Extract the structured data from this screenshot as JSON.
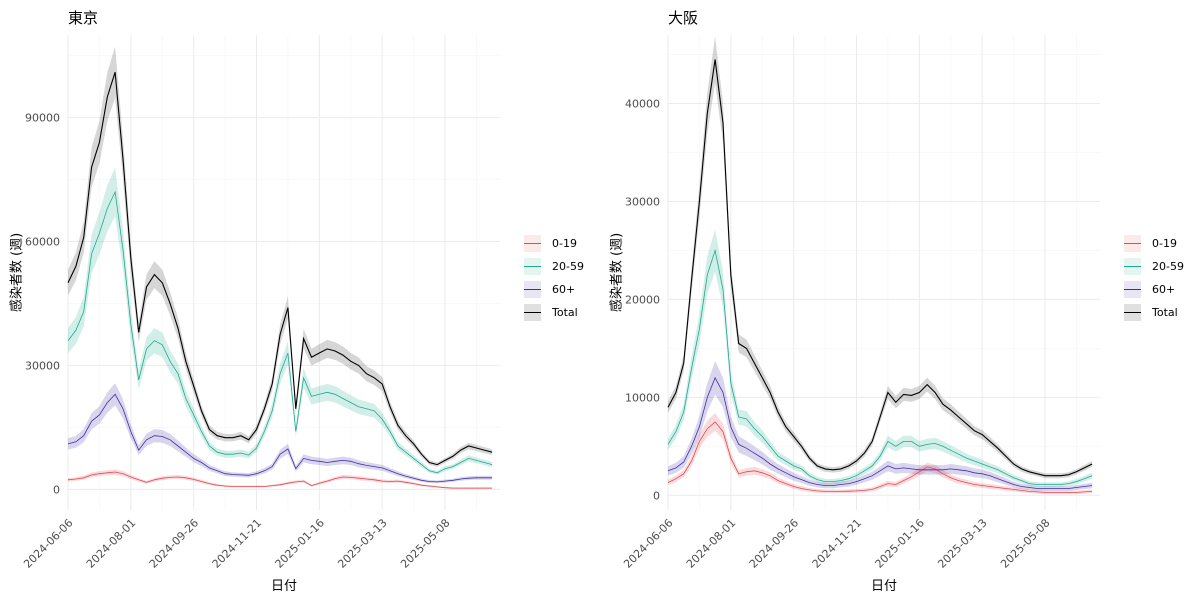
{
  "colors": {
    "0-19": "#E8474F",
    "20-59": "#1FA98E",
    "60+": "#3F2FA3",
    "Total": "#000000"
  },
  "chart_data": [
    {
      "type": "line",
      "title": "東京",
      "xlabel": "日付",
      "ylabel": "感染者数 (週)",
      "xlim": [
        "2024-06-06",
        "2025-06-26"
      ],
      "ylim": [
        -5000,
        110000
      ],
      "yticks": [
        0,
        30000,
        60000,
        90000
      ],
      "xticks": [
        "2024-06-06",
        "2024-08-01",
        "2024-09-26",
        "2024-11-21",
        "2025-01-16",
        "2025-03-13",
        "2025-05-08"
      ],
      "x": [
        "2024-06-06",
        "2024-06-13",
        "2024-06-20",
        "2024-06-27",
        "2024-07-04",
        "2024-07-11",
        "2024-07-18",
        "2024-07-25",
        "2024-08-01",
        "2024-08-08",
        "2024-08-15",
        "2024-08-22",
        "2024-08-29",
        "2024-09-05",
        "2024-09-12",
        "2024-09-19",
        "2024-09-26",
        "2024-10-03",
        "2024-10-10",
        "2024-10-17",
        "2024-10-24",
        "2024-10-31",
        "2024-11-07",
        "2024-11-14",
        "2024-11-21",
        "2024-11-28",
        "2024-12-05",
        "2024-12-12",
        "2024-12-19",
        "2024-12-26",
        "2025-01-02",
        "2025-01-09",
        "2025-01-16",
        "2025-01-23",
        "2025-01-30",
        "2025-02-06",
        "2025-02-13",
        "2025-02-20",
        "2025-02-27",
        "2025-03-06",
        "2025-03-13",
        "2025-03-20",
        "2025-03-27",
        "2025-04-03",
        "2025-04-10",
        "2025-04-17",
        "2025-04-24",
        "2025-05-01",
        "2025-05-08",
        "2025-05-15",
        "2025-05-22",
        "2025-05-29",
        "2025-06-05",
        "2025-06-12",
        "2025-06-19"
      ],
      "series": [
        {
          "name": "0-19",
          "values": [
            2300,
            2500,
            2800,
            3500,
            3800,
            4000,
            4200,
            3800,
            3000,
            2300,
            1700,
            2300,
            2700,
            2900,
            3000,
            2800,
            2400,
            1900,
            1400,
            1000,
            800,
            700,
            700,
            700,
            700,
            700,
            900,
            1100,
            1500,
            1800,
            2000,
            900,
            1500,
            2000,
            2600,
            3000,
            2900,
            2700,
            2500,
            2300,
            2000,
            1900,
            2000,
            1700,
            1400,
            1000,
            800,
            600,
            400,
            300,
            300,
            300,
            300,
            300,
            300
          ],
          "band": 12
        },
        {
          "name": "20-59",
          "values": [
            36000,
            38500,
            43000,
            57000,
            62000,
            68000,
            72000,
            58000,
            40000,
            26500,
            34000,
            36000,
            35000,
            31000,
            28000,
            22000,
            18000,
            14000,
            10500,
            9000,
            8500,
            8500,
            8800,
            8300,
            10000,
            14000,
            19000,
            28000,
            33000,
            14000,
            27000,
            22500,
            23000,
            23500,
            23000,
            22000,
            21000,
            20000,
            19500,
            19000,
            17000,
            14000,
            10500,
            9000,
            7500,
            6000,
            4500,
            4000,
            5000,
            5500,
            6500,
            7500,
            7000,
            6500,
            6000
          ],
          "band": 8
        },
        {
          "name": "60+",
          "values": [
            11000,
            11500,
            13000,
            16500,
            18000,
            21000,
            23000,
            19500,
            14000,
            9500,
            12000,
            13000,
            12800,
            12000,
            10500,
            9000,
            7500,
            6500,
            5200,
            4500,
            3800,
            3600,
            3500,
            3400,
            3800,
            4500,
            5500,
            8500,
            9800,
            5000,
            7500,
            7000,
            6800,
            6500,
            6800,
            7000,
            6800,
            6200,
            5800,
            5500,
            5200,
            4500,
            3800,
            3200,
            2700,
            2200,
            1900,
            1800,
            2000,
            2200,
            2500,
            2700,
            2800,
            2800,
            2800
          ],
          "band": 11
        },
        {
          "name": "Total",
          "values": [
            50000,
            54000,
            61000,
            78000,
            84000,
            95000,
            101000,
            80000,
            56000,
            38000,
            49000,
            52000,
            50000,
            45000,
            39000,
            31000,
            25000,
            19000,
            14500,
            13000,
            12500,
            12500,
            13000,
            12000,
            14500,
            19500,
            25500,
            37500,
            44000,
            19500,
            36500,
            32000,
            33000,
            34000,
            33500,
            32500,
            31000,
            30000,
            28000,
            27000,
            25500,
            20000,
            15500,
            13000,
            11000,
            8500,
            6500,
            6000,
            7000,
            8000,
            9500,
            10500,
            10000,
            9500,
            9000
          ],
          "band": 6
        }
      ]
    },
    {
      "type": "line",
      "title": "大阪",
      "xlabel": "日付",
      "ylabel": "感染者数 (週)",
      "xlim": [
        "2024-06-06",
        "2025-06-26"
      ],
      "ylim": [
        -1500,
        47000
      ],
      "yticks": [
        0,
        10000,
        20000,
        30000,
        40000
      ],
      "xticks": [
        "2024-06-06",
        "2024-08-01",
        "2024-09-26",
        "2024-11-21",
        "2025-01-16",
        "2025-03-13",
        "2025-05-08"
      ],
      "x": [
        "2024-06-06",
        "2024-06-13",
        "2024-06-20",
        "2024-06-27",
        "2024-07-04",
        "2024-07-11",
        "2024-07-18",
        "2024-07-25",
        "2024-08-01",
        "2024-08-08",
        "2024-08-15",
        "2024-08-22",
        "2024-08-29",
        "2024-09-05",
        "2024-09-12",
        "2024-09-19",
        "2024-09-26",
        "2024-10-03",
        "2024-10-10",
        "2024-10-17",
        "2024-10-24",
        "2024-10-31",
        "2024-11-07",
        "2024-11-14",
        "2024-11-21",
        "2024-11-28",
        "2024-12-05",
        "2024-12-12",
        "2024-12-19",
        "2024-12-26",
        "2025-01-02",
        "2025-01-09",
        "2025-01-16",
        "2025-01-23",
        "2025-01-30",
        "2025-02-06",
        "2025-02-13",
        "2025-02-20",
        "2025-02-27",
        "2025-03-06",
        "2025-03-13",
        "2025-03-20",
        "2025-03-27",
        "2025-04-03",
        "2025-04-10",
        "2025-04-17",
        "2025-04-24",
        "2025-05-01",
        "2025-05-08",
        "2025-05-15",
        "2025-05-22",
        "2025-05-29",
        "2025-06-05",
        "2025-06-12",
        "2025-06-19"
      ],
      "series": [
        {
          "name": "0-19",
          "values": [
            1300,
            1700,
            2200,
            3500,
            5500,
            6800,
            7500,
            6500,
            3800,
            2200,
            2400,
            2500,
            2300,
            2000,
            1500,
            1200,
            900,
            700,
            550,
            450,
            400,
            400,
            400,
            420,
            450,
            500,
            600,
            900,
            1200,
            1100,
            1500,
            1900,
            2400,
            2900,
            2700,
            2200,
            1800,
            1500,
            1300,
            1100,
            1000,
            900,
            800,
            700,
            600,
            500,
            400,
            350,
            300,
            300,
            300,
            300,
            300,
            350,
            400
          ],
          "band": 10
        },
        {
          "name": "20-59",
          "values": [
            5200,
            6500,
            8500,
            13000,
            17000,
            22500,
            25000,
            21000,
            11500,
            8000,
            7800,
            6800,
            6000,
            5000,
            4000,
            3500,
            3000,
            2700,
            2000,
            1600,
            1400,
            1400,
            1500,
            1700,
            2000,
            2500,
            3000,
            4000,
            5500,
            5000,
            5500,
            5500,
            5000,
            5200,
            5300,
            5000,
            4600,
            4200,
            3800,
            3500,
            3200,
            2900,
            2600,
            2200,
            1800,
            1500,
            1200,
            1100,
            1100,
            1100,
            1100,
            1200,
            1400,
            1700,
            2000
          ],
          "band": 8
        },
        {
          "name": "60+",
          "values": [
            2500,
            2800,
            3400,
            5000,
            7000,
            10000,
            12000,
            10500,
            7000,
            5200,
            4800,
            4300,
            3800,
            3200,
            2700,
            2300,
            1900,
            1600,
            1300,
            1100,
            1000,
            1000,
            1100,
            1200,
            1400,
            1700,
            2000,
            2500,
            3000,
            2700,
            2800,
            2700,
            2600,
            2600,
            2600,
            2600,
            2700,
            2600,
            2500,
            2300,
            2200,
            2000,
            1700,
            1400,
            1100,
            900,
            800,
            700,
            700,
            700,
            700,
            700,
            800,
            900,
            1000
          ],
          "band": 13
        },
        {
          "name": "Total",
          "values": [
            9000,
            10500,
            13500,
            22000,
            30000,
            39000,
            44500,
            38000,
            22500,
            15500,
            15000,
            13500,
            12000,
            10500,
            8500,
            7000,
            6000,
            5000,
            3800,
            3000,
            2700,
            2600,
            2700,
            3000,
            3500,
            4300,
            5500,
            8000,
            10500,
            9500,
            10300,
            10200,
            10500,
            11300,
            10500,
            9300,
            8700,
            8000,
            7300,
            6600,
            6200,
            5500,
            4800,
            4000,
            3200,
            2700,
            2400,
            2200,
            2000,
            2000,
            2000,
            2100,
            2400,
            2800,
            3200
          ],
          "band": 5
        }
      ]
    }
  ]
}
